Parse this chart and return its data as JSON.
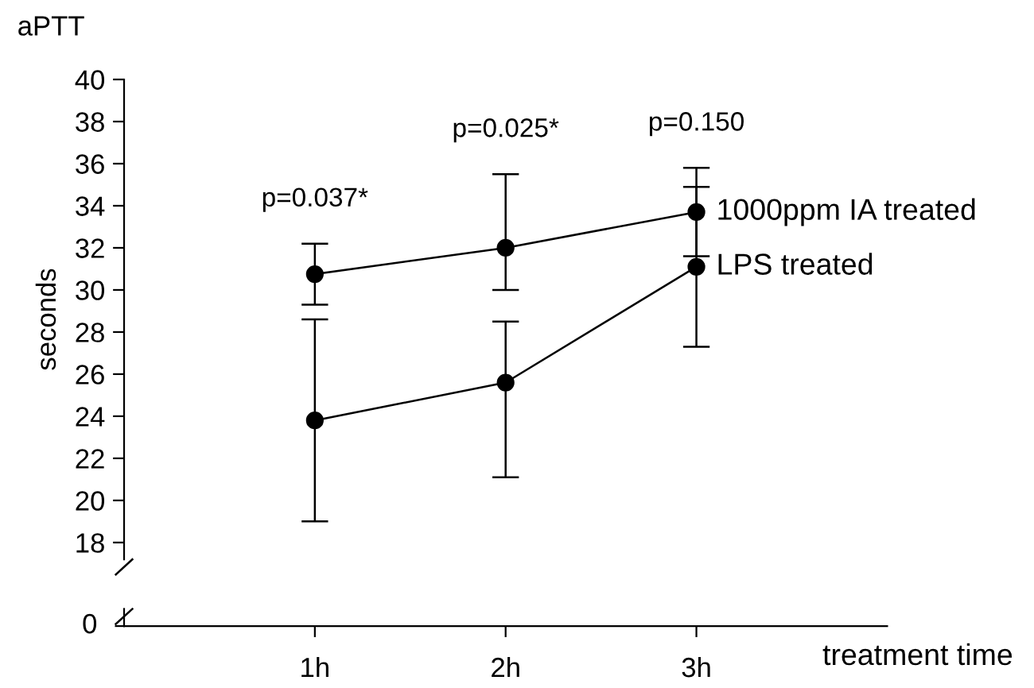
{
  "chart_data": {
    "type": "line",
    "title": "aPTT",
    "ylabel": "seconds",
    "xlabel": "treatment time",
    "categories": [
      "1h",
      "2h",
      "3h"
    ],
    "marker": "circle",
    "line_style": "solid",
    "legend": false,
    "grid": false,
    "ylim": [
      17.2,
      40
    ],
    "yticks": [
      18,
      20,
      22,
      24,
      26,
      28,
      30,
      32,
      34,
      36,
      38,
      40
    ],
    "series": [
      {
        "name": "1000ppm IA treated",
        "color": "#000000",
        "values": [
          30.75,
          32.0,
          33.7
        ],
        "errors": [
          [
            29.3,
            32.2
          ],
          [
            30.0,
            35.5
          ],
          [
            31.6,
            35.8
          ]
        ]
      },
      {
        "name": "LPS treated",
        "color": "#000000",
        "values": [
          23.8,
          25.6,
          31.1
        ],
        "errors": [
          [
            19.0,
            28.6
          ],
          [
            21.1,
            28.5
          ],
          [
            27.3,
            34.9
          ]
        ]
      }
    ],
    "annotations": [
      "p=0.037*",
      "p=0.025*",
      "p=0.150",
      "0"
    ]
  }
}
